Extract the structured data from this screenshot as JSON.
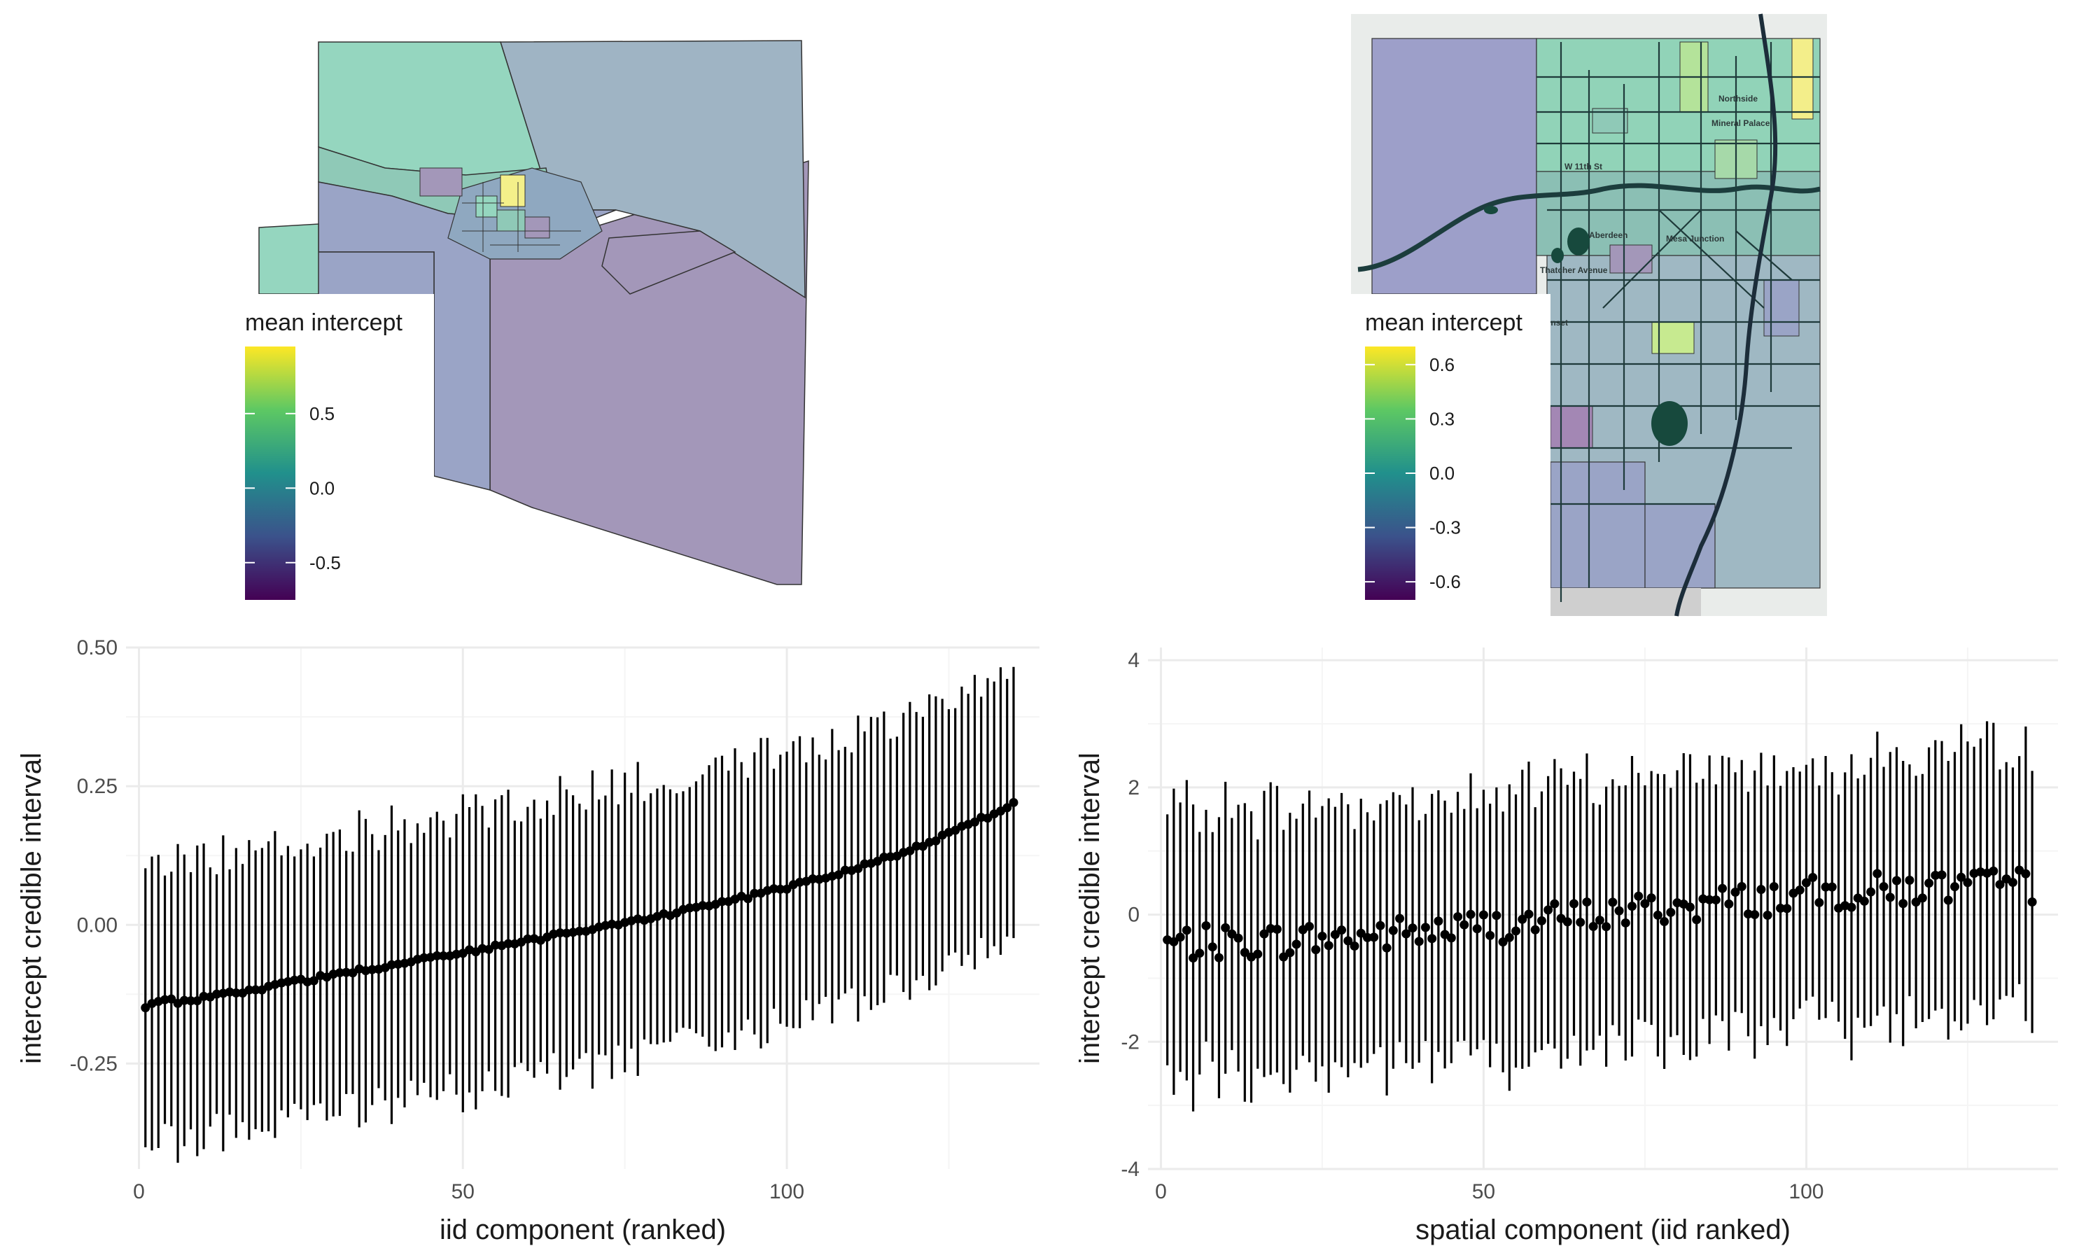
{
  "colors": {
    "viridis": [
      "#440154",
      "#3b528b",
      "#21908c",
      "#5dc863",
      "#fde725"
    ],
    "map_alpha": 0.5,
    "grid_major": "#ebebeb",
    "grid_minor": "#f5f5f5",
    "ink": "#000000"
  },
  "maps": [
    {
      "name": "county-map",
      "legend_title": "mean intercept",
      "legend_ticks": [
        "0.5",
        "0.0",
        "-0.5"
      ],
      "legend_values": [
        0.5,
        0.0,
        -0.5
      ],
      "legend_range": [
        -0.75,
        0.95
      ]
    },
    {
      "name": "city-map",
      "legend_title": "mean intercept",
      "legend_ticks": [
        "0.6",
        "0.3",
        "0.0",
        "-0.3",
        "-0.6"
      ],
      "legend_values": [
        0.6,
        0.3,
        0.0,
        -0.3,
        -0.6
      ],
      "legend_range": [
        -0.7,
        0.7
      ],
      "street_labels": [
        "Northside",
        "Mineral Palace",
        "W 11th St",
        "Aberdeen",
        "Mesa Junction",
        "Thatcher Avenue",
        "Sunset"
      ]
    }
  ],
  "chart_data": [
    {
      "type": "errorbar",
      "name": "iid-chart",
      "xlabel": "iid component (ranked)",
      "ylabel": "intercept credible interval",
      "xlim": [
        -2,
        139
      ],
      "ylim": [
        -0.44,
        0.5
      ],
      "x_ticks": [
        0,
        50,
        100
      ],
      "y_ticks": [
        -0.25,
        0.0,
        0.25,
        0.5
      ],
      "y_tick_labels": [
        "-0.25",
        "0.00",
        "0.25",
        "0.50"
      ],
      "n": 135,
      "mean_start": -0.15,
      "mean_end": 0.22,
      "half_width": 0.25
    },
    {
      "type": "errorbar",
      "name": "spatial-chart",
      "xlabel": "spatial component  (iid ranked)",
      "ylabel": "intercept credible interval",
      "xlim": [
        -2,
        139
      ],
      "ylim": [
        -4.0,
        4.2
      ],
      "x_ticks": [
        0,
        50,
        100
      ],
      "y_ticks": [
        -4,
        -2,
        0,
        2,
        4
      ],
      "y_tick_labels": [
        "-4",
        "-2",
        "0",
        "2",
        "4"
      ],
      "n": 135,
      "mean_start": -0.45,
      "mean_end": 0.45,
      "half_width": 2.1
    }
  ]
}
